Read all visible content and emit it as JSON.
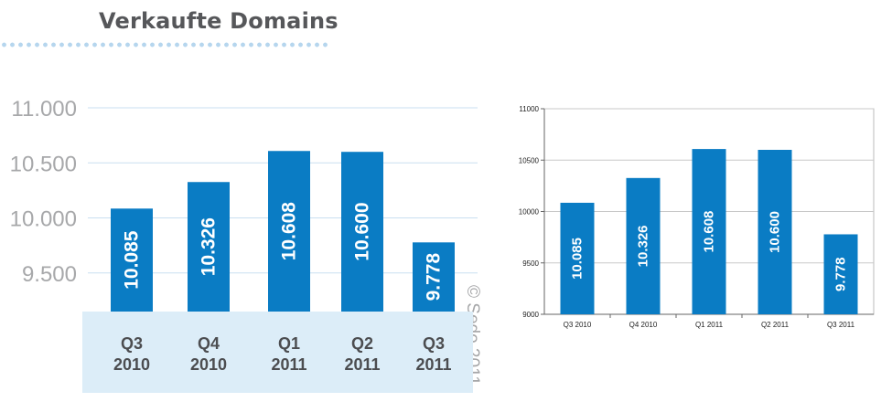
{
  "title": "Verkaufte Domains",
  "copyright": "© Sedo 2011",
  "colors": {
    "bar": "#0a7cc4",
    "title": "#56575a",
    "dots": "#b6d6ee",
    "category_band": "#dcedf8",
    "left_grid": "#c9dff0",
    "left_tick_text": "#a7a8aa",
    "right_grid": "#c8c8c8",
    "right_axis": "#666666"
  },
  "chart_data": [
    {
      "type": "bar",
      "categories": [
        "Q3\n2010",
        "Q4\n2010",
        "Q1\n2011",
        "Q2\n2011",
        "Q3\n2011"
      ],
      "values": [
        10085,
        10326,
        10608,
        10600,
        9778
      ],
      "value_labels": [
        "10.085",
        "10.326",
        "10.608",
        "10.600",
        "9.778"
      ],
      "ytick_values": [
        9500,
        10000,
        10500,
        11000
      ],
      "ytick_labels": [
        "9.500",
        "10.000",
        "10.500",
        "11.000"
      ],
      "ylim": [
        9150,
        11000
      ],
      "grid": true,
      "title": "",
      "xlabel": "",
      "ylabel": ""
    },
    {
      "type": "bar",
      "categories": [
        "Q3 2010",
        "Q4 2010",
        "Q1 2011",
        "Q2 2011",
        "Q3 2011"
      ],
      "values": [
        10085,
        10326,
        10608,
        10600,
        9778
      ],
      "value_labels": [
        "10.085",
        "10.326",
        "10.608",
        "10.600",
        "9.778"
      ],
      "ytick_values": [
        9000,
        9500,
        10000,
        10500,
        11000
      ],
      "ytick_labels": [
        "9000",
        "9500",
        "10000",
        "10500",
        "11000"
      ],
      "ylim": [
        9000,
        11000
      ],
      "grid": true,
      "title": "",
      "xlabel": "",
      "ylabel": ""
    }
  ]
}
